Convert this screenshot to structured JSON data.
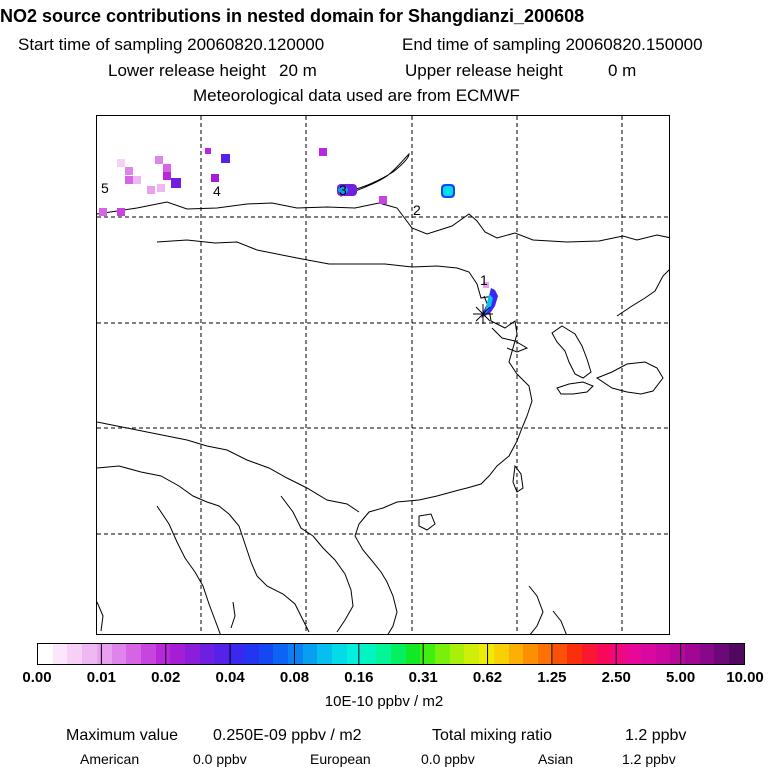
{
  "header": {
    "title": "NO2 source contributions in nested domain for Shangdianzi_200608",
    "start_label": "Start time of sampling 20060820.120000",
    "end_label": "End time of sampling 20060820.150000",
    "lower_label": "Lower release height",
    "lower_value": "20 m",
    "upper_label": "Upper release height",
    "upper_value": "0 m",
    "met_label": "Meteorological data used are from ECMWF"
  },
  "map": {
    "region_labels": [
      "1",
      "2",
      "3",
      "4",
      "5"
    ],
    "station_marker": "receptor-star"
  },
  "colorbar": {
    "colors": [
      "#ffffff",
      "#fbe6fb",
      "#f6d0f7",
      "#f0b8f3",
      "#e9a0ef",
      "#df84ea",
      "#d565e5",
      "#c844df",
      "#b828da",
      "#a41ed6",
      "#8a1ed9",
      "#6f1fe0",
      "#5422e8",
      "#3b28ee",
      "#2335f2",
      "#1548f3",
      "#0d63f4",
      "#0a80f2",
      "#07a0f0",
      "#05c0ee",
      "#03dbe8",
      "#02f0dd",
      "#02f5c0",
      "#03f595",
      "#05f060",
      "#10ea25",
      "#40ee10",
      "#78f00c",
      "#a8f00a",
      "#d0ee08",
      "#eeec06",
      "#f8d004",
      "#fbb003",
      "#fc9002",
      "#fc7004",
      "#fb5008",
      "#fa300c",
      "#fa1830",
      "#f80858",
      "#f00880",
      "#e80898",
      "#d808a0",
      "#c8089e",
      "#b6089a",
      "#a00894",
      "#88088a",
      "#6c0878",
      "#500860"
    ],
    "tick_labels": [
      "0.00",
      "0.01",
      "0.02",
      "0.04",
      "0.08",
      "0.16",
      "0.31",
      "0.62",
      "1.25",
      "2.50",
      "5.00",
      "10.00"
    ],
    "unit": "10E-10 ppbv / m2"
  },
  "stats": {
    "max_label": "Maximum value",
    "max_value": "0.250E-09 ppbv / m2",
    "total_label": "Total mixing ratio",
    "total_value": "1.2 ppbv",
    "american_label": "American",
    "american_value": "0.0 ppbv",
    "european_label": "European",
    "european_value": "0.0 ppbv",
    "asian_label": "Asian",
    "asian_value": "1.2 ppbv"
  }
}
